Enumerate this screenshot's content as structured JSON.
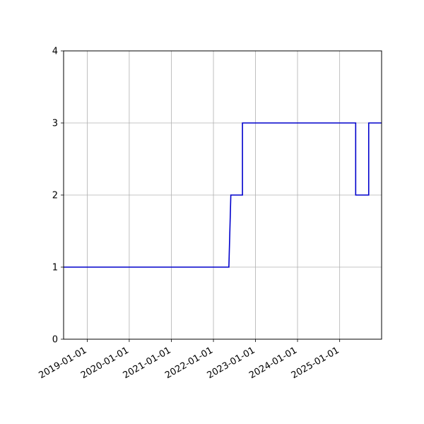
{
  "chart_data": {
    "type": "line",
    "drawstyle": "steps",
    "title": "",
    "xlabel": "",
    "ylabel": "",
    "x_axis_type": "date",
    "xlim": [
      "2018-06-10",
      "2025-12-31"
    ],
    "ylim": [
      0,
      4
    ],
    "grid": true,
    "legend": "none",
    "x_ticks": [
      "2019-01-01",
      "2020-01-01",
      "2021-01-01",
      "2022-01-01",
      "2023-01-01",
      "2024-01-01",
      "2025-01-01"
    ],
    "y_ticks": [
      0,
      1,
      2,
      3,
      4
    ],
    "series": [
      {
        "color": "#0000cc",
        "points": [
          {
            "x": "2018-06-10",
            "y": 1
          },
          {
            "x": "2022-05-15",
            "y": 1
          },
          {
            "x": "2022-06-01",
            "y": 2
          },
          {
            "x": "2022-09-10",
            "y": 2
          },
          {
            "x": "2022-09-10",
            "y": 3
          },
          {
            "x": "2025-05-20",
            "y": 3
          },
          {
            "x": "2025-05-20",
            "y": 2
          },
          {
            "x": "2025-09-10",
            "y": 2
          },
          {
            "x": "2025-09-10",
            "y": 3
          },
          {
            "x": "2025-12-31",
            "y": 3
          }
        ]
      }
    ]
  }
}
